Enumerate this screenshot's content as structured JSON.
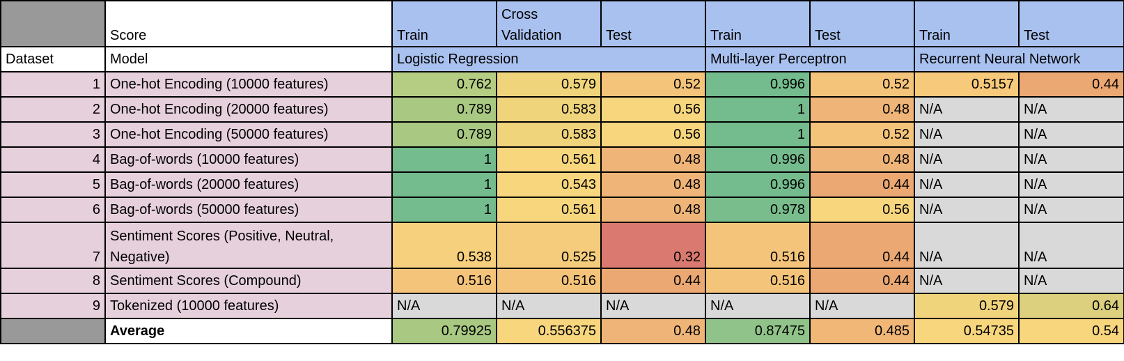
{
  "header": {
    "score_label": "Score",
    "columns": [
      "Train",
      "Cross Validation",
      "Test",
      "Train",
      "Test",
      "Train",
      "Test"
    ]
  },
  "subheader": {
    "dataset_label": "Dataset",
    "model_label": "Model",
    "groups": [
      "Logistic Regression",
      "Multi-layer Perceptron",
      "Recurrent Neural Network"
    ]
  },
  "rows": [
    {
      "id": "1",
      "label": "One-hot Encoding (10000 features)",
      "values": [
        "0.762",
        "0.579",
        "0.52",
        "0.996",
        "0.52",
        "0.5157",
        "0.44"
      ],
      "colors": [
        "#b5cc83",
        "#f0d47c",
        "#f4c47a",
        "#74bb8d",
        "#f4c47a",
        "#f6c97b",
        "#eba873"
      ]
    },
    {
      "id": "2",
      "label": "One-hot Encoding (20000 features)",
      "values": [
        "0.789",
        "0.583",
        "0.56",
        "1",
        "0.48",
        "N/A",
        "N/A"
      ],
      "colors": [
        "#a9c983",
        "#f0d47c",
        "#f7d67e",
        "#74bb8d",
        "#efb578",
        "#d9d9d9",
        "#d9d9d9"
      ]
    },
    {
      "id": "3",
      "label": "One-hot Encoding (50000 features)",
      "values": [
        "0.789",
        "0.583",
        "0.56",
        "1",
        "0.52",
        "N/A",
        "N/A"
      ],
      "colors": [
        "#a9c983",
        "#f0d47c",
        "#f7d67e",
        "#74bb8d",
        "#f4c47a",
        "#d9d9d9",
        "#d9d9d9"
      ]
    },
    {
      "id": "4",
      "label": "Bag-of-words (10000 features)",
      "values": [
        "1",
        "0.561",
        "0.48",
        "0.996",
        "0.48",
        "N/A",
        "N/A"
      ],
      "colors": [
        "#74bb8d",
        "#f7d67e",
        "#efb578",
        "#74bb8d",
        "#efb578",
        "#d9d9d9",
        "#d9d9d9"
      ]
    },
    {
      "id": "5",
      "label": "Bag-of-words (20000 features)",
      "values": [
        "1",
        "0.543",
        "0.48",
        "0.996",
        "0.44",
        "N/A",
        "N/A"
      ],
      "colors": [
        "#74bb8d",
        "#f7d67e",
        "#efb578",
        "#74bb8d",
        "#eba873",
        "#d9d9d9",
        "#d9d9d9"
      ]
    },
    {
      "id": "6",
      "label": "Bag-of-words (50000 features)",
      "values": [
        "1",
        "0.561",
        "0.48",
        "0.978",
        "0.56",
        "N/A",
        "N/A"
      ],
      "colors": [
        "#74bb8d",
        "#f7d67e",
        "#efb578",
        "#79bd8c",
        "#f7d67e",
        "#d9d9d9",
        "#d9d9d9"
      ]
    },
    {
      "id": "7",
      "label": "Sentiment Scores (Positive, Neutral, Negative)",
      "values": [
        "0.538",
        "0.525",
        "0.32",
        "0.516",
        "0.44",
        "N/A",
        "N/A"
      ],
      "colors": [
        "#f6d07d",
        "#f4cc7c",
        "#d9796f",
        "#f4c47a",
        "#eba873",
        "#d9d9d9",
        "#d9d9d9"
      ]
    },
    {
      "id": "8",
      "label": "Sentiment Scores (Compound)",
      "values": [
        "0.516",
        "0.516",
        "0.44",
        "0.516",
        "0.44",
        "N/A",
        "N/A"
      ],
      "colors": [
        "#f4c47a",
        "#f4c47a",
        "#eba873",
        "#f4c47a",
        "#eba873",
        "#d9d9d9",
        "#d9d9d9"
      ]
    },
    {
      "id": "9",
      "label": "Tokenized (10000 features)",
      "values": [
        "N/A",
        "N/A",
        "N/A",
        "N/A",
        "N/A",
        "0.579",
        "0.64"
      ],
      "colors": [
        "#d9d9d9",
        "#d9d9d9",
        "#d9d9d9",
        "#d9d9d9",
        "#d9d9d9",
        "#f0d47c",
        "#dccf7d"
      ]
    }
  ],
  "average": {
    "label": "Average",
    "values": [
      "0.79925",
      "0.556375",
      "0.48",
      "0.87475",
      "0.485",
      "0.54735",
      "0.54"
    ],
    "colors": [
      "#a9c983",
      "#f7d67e",
      "#efb578",
      "#90c389",
      "#f0b777",
      "#f7d67e",
      "#f7d67e"
    ]
  },
  "colors": {
    "header_blue": "#a9c1ef",
    "row_label_pink": "#e6d0dc",
    "corner_gray": "#999999",
    "na_gray": "#d9d9d9"
  }
}
